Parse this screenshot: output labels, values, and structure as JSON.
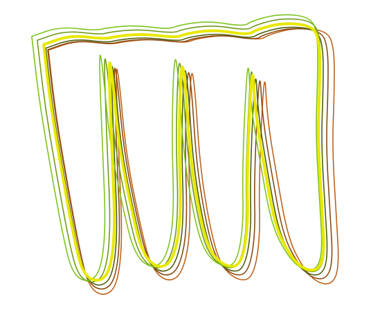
{
  "figure": {
    "background": "#ffffff",
    "loop_count": 6,
    "loop_colors": [
      "#c0621a",
      "#8a4a12",
      "#4f5e10",
      "#6f9a1a",
      "#7cc41e",
      "#e8e800"
    ],
    "highlight_color": "#e8e800"
  }
}
